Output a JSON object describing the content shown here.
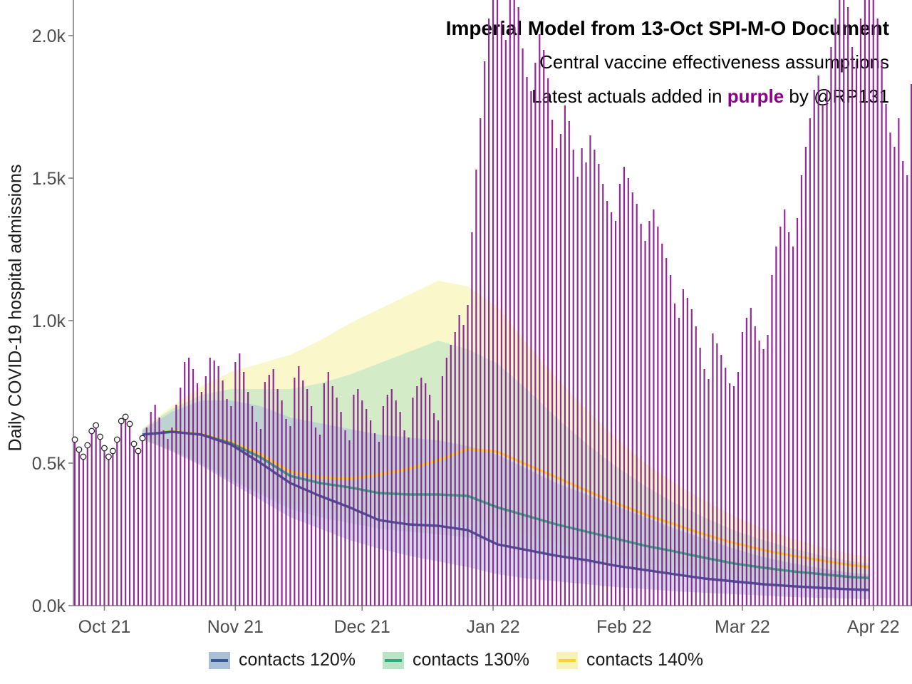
{
  "chart_data": {
    "type": "bar",
    "title": "Imperial Model from 13-Oct SPI-M-O Document",
    "subtitle": "Central vaccine effectiveness assumptions",
    "note_prefix": "Latest actuals added in ",
    "note_highlight": "purple",
    "note_suffix": " by @RP131",
    "note_highlight_color": "#8B008B",
    "ylabel": "Daily COVID-19 hospital admissions",
    "xlabel": "",
    "grid": "off",
    "legend_position": "bottom",
    "axis_color": "#808080",
    "tick_label_color": "#4d4d4d",
    "ylim": [
      0,
      2125
    ],
    "x_span_days": [
      0,
      198
    ],
    "y_ticks": [
      {
        "label": "0.0k",
        "value": 0
      },
      {
        "label": "0.5k",
        "value": 500
      },
      {
        "label": "1.0k",
        "value": 1000
      },
      {
        "label": "1.5k",
        "value": 1500
      },
      {
        "label": "2.0k",
        "value": 2000
      }
    ],
    "x_ticks": [
      {
        "label": "Oct 21",
        "day": 7
      },
      {
        "label": "Nov 21",
        "day": 38
      },
      {
        "label": "Dec 21",
        "day": 68
      },
      {
        "label": "Jan 22",
        "day": 99
      },
      {
        "label": "Feb 22",
        "day": 130
      },
      {
        "label": "Mar 22",
        "day": 158
      },
      {
        "label": "Apr 22",
        "day": 189
      }
    ],
    "actuals": {
      "name": "daily admissions (actuals)",
      "color": "#8B1F8F",
      "marker": "open-circle-on-early-points",
      "known_count": 17,
      "clip_max": 2125,
      "values": [
        575,
        540,
        515,
        555,
        605,
        625,
        585,
        545,
        515,
        535,
        575,
        640,
        655,
        630,
        560,
        535,
        580,
        625,
        680,
        705,
        660,
        615,
        585,
        625,
        705,
        765,
        855,
        870,
        830,
        780,
        750,
        805,
        870,
        860,
        840,
        790,
        725,
        700,
        855,
        885,
        820,
        750,
        700,
        645,
        620,
        785,
        810,
        830,
        760,
        720,
        655,
        630,
        800,
        840,
        790,
        760,
        700,
        625,
        600,
        780,
        820,
        770,
        730,
        680,
        615,
        580,
        740,
        760,
        720,
        690,
        650,
        605,
        575,
        700,
        740,
        760,
        720,
        680,
        615,
        590,
        730,
        770,
        800,
        780,
        740,
        675,
        650,
        805,
        870,
        915,
        960,
        1020,
        985,
        1055,
        1310,
        1530,
        1710,
        1910,
        2060,
        2125,
        2125,
        2050,
        1985,
        2125,
        2125,
        2100,
        1955,
        1855,
        1805,
        1905,
        2005,
        1950,
        1850,
        1705,
        1605,
        1655,
        1755,
        1700,
        1600,
        1505,
        1605,
        1555,
        1650,
        1600,
        1550,
        1480,
        1420,
        1380,
        1350,
        1480,
        1540,
        1500,
        1450,
        1410,
        1340,
        1280,
        1350,
        1390,
        1330,
        1270,
        1220,
        1160,
        1060,
        1010,
        1110,
        1080,
        1040,
        980,
        905,
        830,
        795,
        955,
        920,
        880,
        835,
        780,
        770,
        820,
        960,
        1010,
        1045,
        980,
        930,
        900,
        950,
        1160,
        1260,
        1330,
        1390,
        1310,
        1260,
        1360,
        1510,
        1610,
        1710,
        1810,
        1860,
        1760,
        1810,
        1960,
        2060,
        2125,
        2125,
        2100,
        1960,
        1910,
        2060,
        2125,
        2125,
        2125,
        2060,
        1910,
        1760,
        1660,
        1610,
        1710,
        1560,
        1510,
        1830
      ]
    },
    "series": [
      {
        "name": "contacts 120%",
        "color": "#3A5A96",
        "fill": "#A9C0D8",
        "fill_opacity": 0.55,
        "days": [
          16,
          23,
          30,
          37,
          44,
          51,
          58,
          65,
          72,
          79,
          86,
          93,
          100,
          107,
          114,
          121,
          128,
          135,
          142,
          149,
          156,
          163,
          170,
          177,
          184,
          188
        ],
        "center": [
          600,
          610,
          600,
          565,
          500,
          430,
          385,
          345,
          300,
          285,
          280,
          265,
          215,
          195,
          175,
          160,
          140,
          125,
          110,
          95,
          85,
          75,
          68,
          62,
          57,
          55
        ],
        "lower": [
          585,
          540,
          490,
          430,
          370,
          310,
          270,
          230,
          200,
          175,
          155,
          135,
          110,
          95,
          85,
          75,
          65,
          58,
          50,
          45,
          40,
          35,
          30,
          27,
          24,
          22
        ],
        "upper": [
          615,
          680,
          720,
          720,
          700,
          660,
          640,
          620,
          600,
          590,
          580,
          560,
          530,
          480,
          430,
          390,
          350,
          310,
          270,
          235,
          200,
          170,
          148,
          130,
          115,
          110
        ]
      },
      {
        "name": "contacts 130%",
        "color": "#2BAD7E",
        "fill": "#BBE3C5",
        "fill_opacity": 0.6,
        "days": [
          16,
          23,
          30,
          37,
          44,
          51,
          58,
          65,
          72,
          79,
          86,
          93,
          100,
          107,
          114,
          121,
          128,
          135,
          142,
          149,
          156,
          163,
          170,
          177,
          184,
          188
        ],
        "center": [
          600,
          610,
          600,
          570,
          520,
          455,
          430,
          415,
          395,
          390,
          390,
          385,
          345,
          315,
          285,
          260,
          235,
          210,
          190,
          168,
          148,
          133,
          120,
          110,
          100,
          97
        ],
        "lower": [
          580,
          545,
          495,
          440,
          390,
          340,
          310,
          290,
          270,
          260,
          250,
          240,
          220,
          195,
          170,
          150,
          135,
          120,
          105,
          92,
          80,
          70,
          62,
          55,
          50,
          48
        ],
        "upper": [
          620,
          690,
          740,
          760,
          760,
          760,
          780,
          810,
          850,
          890,
          930,
          900,
          850,
          760,
          660,
          570,
          490,
          420,
          360,
          310,
          265,
          230,
          200,
          175,
          155,
          148
        ]
      },
      {
        "name": "contacts 140%",
        "color": "#FFD42E",
        "fill": "#F8F3B4",
        "fill_opacity": 0.7,
        "days": [
          16,
          23,
          30,
          37,
          44,
          51,
          58,
          65,
          72,
          79,
          86,
          93,
          100,
          107,
          114,
          121,
          128,
          135,
          142,
          149,
          156,
          163,
          170,
          177,
          184,
          188
        ],
        "center": [
          600,
          612,
          602,
          575,
          530,
          470,
          450,
          445,
          460,
          480,
          510,
          550,
          540,
          495,
          450,
          405,
          360,
          320,
          285,
          250,
          220,
          195,
          175,
          158,
          142,
          135
        ],
        "lower": [
          580,
          548,
          500,
          450,
          400,
          360,
          340,
          330,
          320,
          315,
          310,
          300,
          280,
          250,
          220,
          195,
          175,
          155,
          140,
          125,
          110,
          98,
          88,
          80,
          72,
          70
        ],
        "upper": [
          620,
          700,
          770,
          820,
          850,
          880,
          930,
          990,
          1040,
          1090,
          1140,
          1120,
          1050,
          920,
          800,
          690,
          590,
          500,
          430,
          370,
          315,
          270,
          235,
          205,
          180,
          172
        ]
      }
    ]
  }
}
